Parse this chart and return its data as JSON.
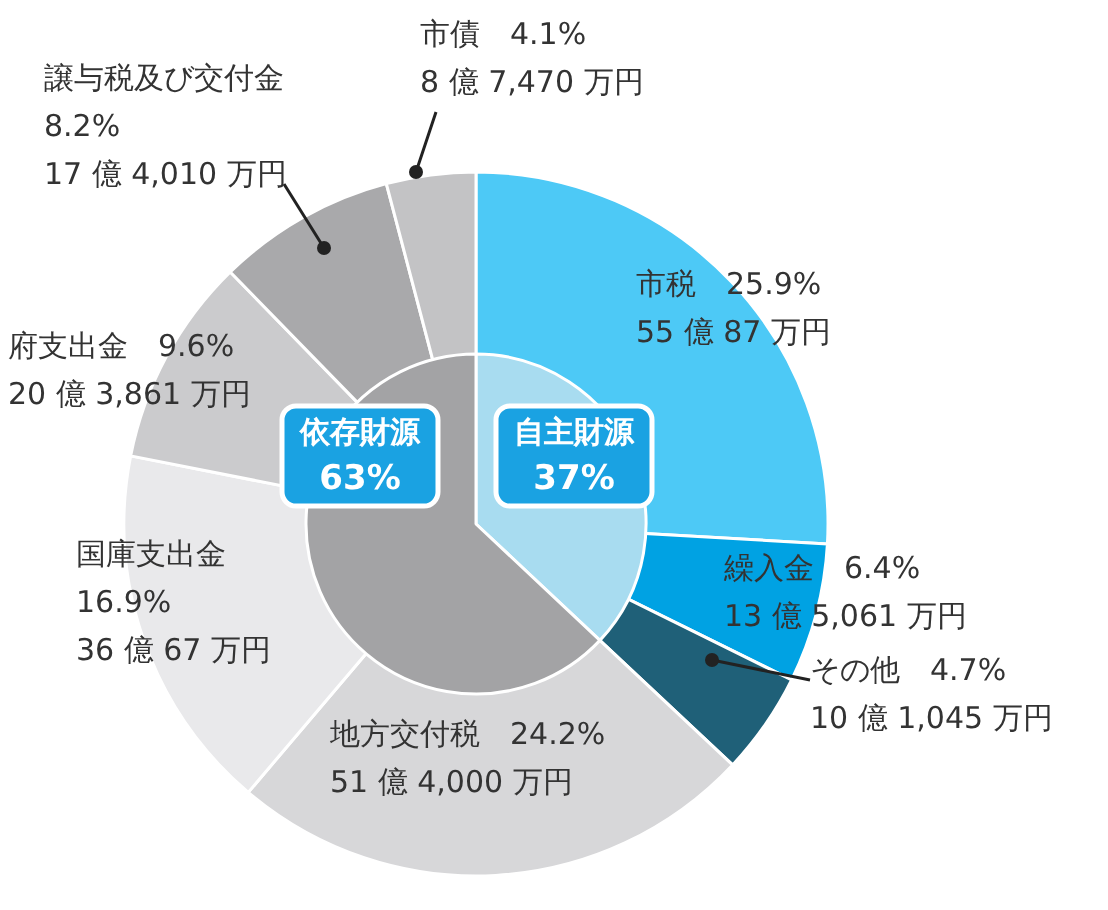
{
  "chart_data": [
    {
      "type": "donut",
      "categories": [
        "市税",
        "繰入金",
        "その他",
        "地方交付税",
        "国庫支出金",
        "府支出金",
        "譲与税及び交付金",
        "市債"
      ],
      "values": [
        25.9,
        6.4,
        4.7,
        24.2,
        16.9,
        9.6,
        8.2,
        4.1
      ],
      "colors": [
        "#4dc9f6",
        "#00a2e3",
        "#1f6078",
        "#d7d7d9",
        "#e9e9eb",
        "#cbcbcd",
        "#a9a9ab",
        "#c3c3c5"
      ],
      "value_labels": [
        "25.9%\n55 億 87 万円",
        "6.4%\n13 億 5,061 万円",
        "4.7%\n10 億 1,045 万円",
        "24.2%\n51 億 4,000 万円",
        "16.9%\n36 億 67 万円",
        "9.6%\n20 億 3,861 万円",
        "8.2%\n17 億 4,010 万円",
        "4.1%\n8 億 7,470 万円"
      ],
      "legend": false
    },
    {
      "type": "pie",
      "categories": [
        "自主財源",
        "依存財源"
      ],
      "values": [
        37,
        63
      ],
      "colors": [
        "#a8dcf0",
        "#a3a3a5"
      ],
      "value_labels": [
        "37%",
        "63%"
      ],
      "legend": false
    }
  ]
}
